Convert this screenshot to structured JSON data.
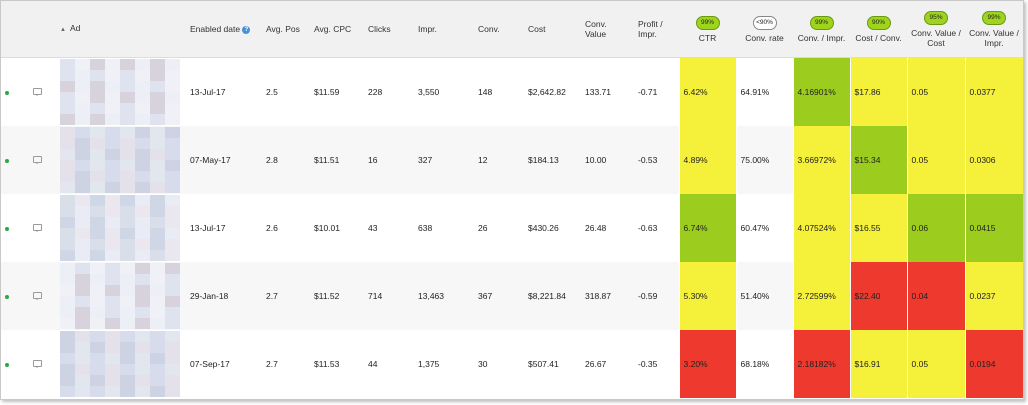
{
  "headers": {
    "ad": "Ad",
    "enabled_date": "Enabled date",
    "avg_pos": "Avg. Pos",
    "avg_cpc": "Avg. CPC",
    "clicks": "Clicks",
    "impr": "Impr.",
    "conv": "Conv.",
    "cost": "Cost",
    "conv_value": "Conv. Value",
    "profit_impr": "Profit / Impr.",
    "ctr": "CTR",
    "conv_rate": "Conv. rate",
    "conv_impr": "Conv. / Impr.",
    "cost_conv": "Cost / Conv.",
    "conv_value_cost": "Conv. Value / Cost",
    "conv_value_impr": "Conv. Value / Impr."
  },
  "badges": {
    "ctr": "99%",
    "conv_rate": "<90%",
    "conv_impr": "99%",
    "cost_conv": "90%",
    "conv_value_cost": "95%",
    "conv_value_impr": "99%"
  },
  "colors": {
    "yellow": "#f5f03a",
    "green": "#9ccc1e",
    "red": "#ee3a2e",
    "status_dot": "#2aa84a"
  },
  "rows": [
    {
      "enabled_date": "13-Jul-17",
      "avg_pos": "2.5",
      "avg_cpc": "$11.59",
      "clicks": "228",
      "impr": "3,550",
      "conv": "148",
      "cost": "$2,642.82",
      "conv_value": "133.71",
      "profit_impr": "-0.71",
      "ctr": "6.42%",
      "conv_rate": "64.91%",
      "conv_impr": "4.16901%",
      "cost_conv": "$17.86",
      "conv_value_cost": "0.05",
      "conv_value_impr": "0.0377",
      "heat": {
        "ctr": "yellow",
        "conv_impr": "green",
        "cost_conv": "yellow",
        "conv_value_cost": "yellow",
        "conv_value_impr": "yellow"
      }
    },
    {
      "enabled_date": "07-May-17",
      "avg_pos": "2.8",
      "avg_cpc": "$11.51",
      "clicks": "16",
      "impr": "327",
      "conv": "12",
      "cost": "$184.13",
      "conv_value": "10.00",
      "profit_impr": "-0.53",
      "ctr": "4.89%",
      "conv_rate": "75.00%",
      "conv_impr": "3.66972%",
      "cost_conv": "$15.34",
      "conv_value_cost": "0.05",
      "conv_value_impr": "0.0306",
      "heat": {
        "ctr": "yellow",
        "conv_impr": "yellow",
        "cost_conv": "green",
        "conv_value_cost": "yellow",
        "conv_value_impr": "yellow"
      }
    },
    {
      "enabled_date": "13-Jul-17",
      "avg_pos": "2.6",
      "avg_cpc": "$10.01",
      "clicks": "43",
      "impr": "638",
      "conv": "26",
      "cost": "$430.26",
      "conv_value": "26.48",
      "profit_impr": "-0.63",
      "ctr": "6.74%",
      "conv_rate": "60.47%",
      "conv_impr": "4.07524%",
      "cost_conv": "$16.55",
      "conv_value_cost": "0.06",
      "conv_value_impr": "0.0415",
      "heat": {
        "ctr": "green",
        "conv_impr": "yellow",
        "cost_conv": "yellow",
        "conv_value_cost": "green",
        "conv_value_impr": "green"
      }
    },
    {
      "enabled_date": "29-Jan-18",
      "avg_pos": "2.7",
      "avg_cpc": "$11.52",
      "clicks": "714",
      "impr": "13,463",
      "conv": "367",
      "cost": "$8,221.84",
      "conv_value": "318.87",
      "profit_impr": "-0.59",
      "ctr": "5.30%",
      "conv_rate": "51.40%",
      "conv_impr": "2.72599%",
      "cost_conv": "$22.40",
      "conv_value_cost": "0.04",
      "conv_value_impr": "0.0237",
      "heat": {
        "ctr": "yellow",
        "conv_impr": "yellow",
        "cost_conv": "red",
        "conv_value_cost": "red",
        "conv_value_impr": "yellow"
      }
    },
    {
      "enabled_date": "07-Sep-17",
      "avg_pos": "2.7",
      "avg_cpc": "$11.53",
      "clicks": "44",
      "impr": "1,375",
      "conv": "30",
      "cost": "$507.41",
      "conv_value": "26.67",
      "profit_impr": "-0.35",
      "ctr": "3.20%",
      "conv_rate": "68.18%",
      "conv_impr": "2.18182%",
      "cost_conv": "$16.91",
      "conv_value_cost": "0.05",
      "conv_value_impr": "0.0194",
      "heat": {
        "ctr": "red",
        "conv_impr": "red",
        "cost_conv": "yellow",
        "conv_value_cost": "yellow",
        "conv_value_impr": "red"
      }
    }
  ]
}
